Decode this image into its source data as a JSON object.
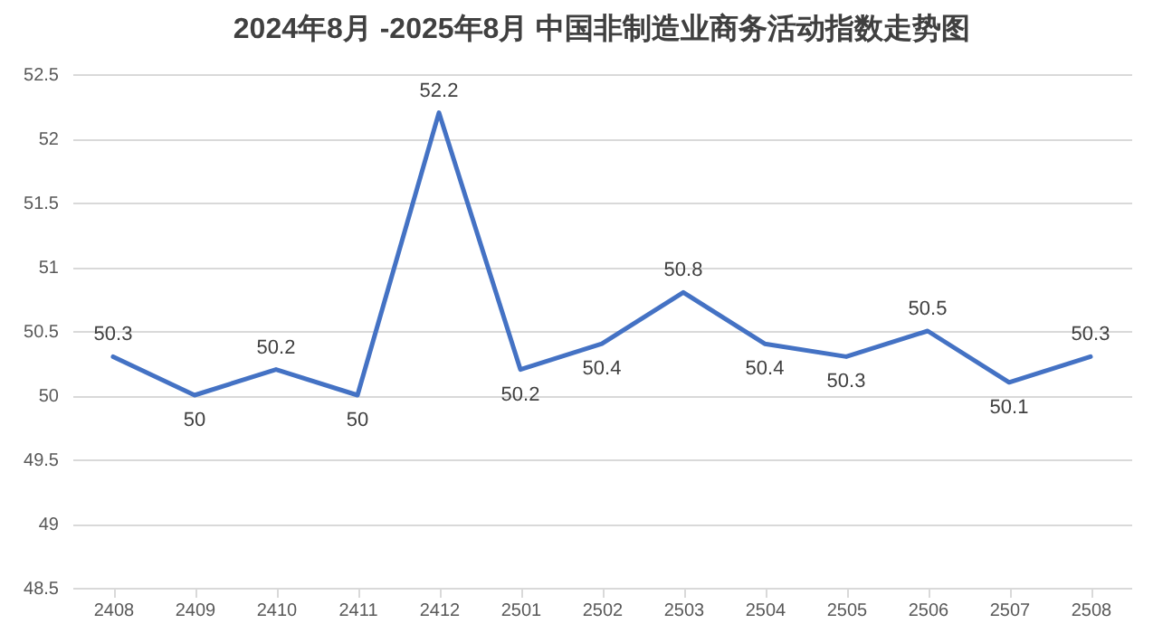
{
  "chart_data": {
    "type": "line",
    "title": "2024年8月 -2025年8月 中国非制造业商务活动指数走势图",
    "categories": [
      "2408",
      "2409",
      "2410",
      "2411",
      "2412",
      "2501",
      "2502",
      "2503",
      "2504",
      "2505",
      "2506",
      "2507",
      "2508"
    ],
    "series": [
      {
        "color": "#4472c4",
        "values": [
          50.3,
          50,
          50.2,
          50,
          52.2,
          50.2,
          50.4,
          50.8,
          50.4,
          50.3,
          50.5,
          50.1,
          50.3
        ]
      }
    ],
    "ylim": [
      48.5,
      52.5
    ],
    "yticks": [
      48.5,
      49,
      49.5,
      50,
      50.5,
      51,
      51.5,
      52,
      52.5
    ],
    "grid": "y",
    "data_labels": true,
    "legend": false,
    "marker": "none",
    "line_style": "solid"
  }
}
